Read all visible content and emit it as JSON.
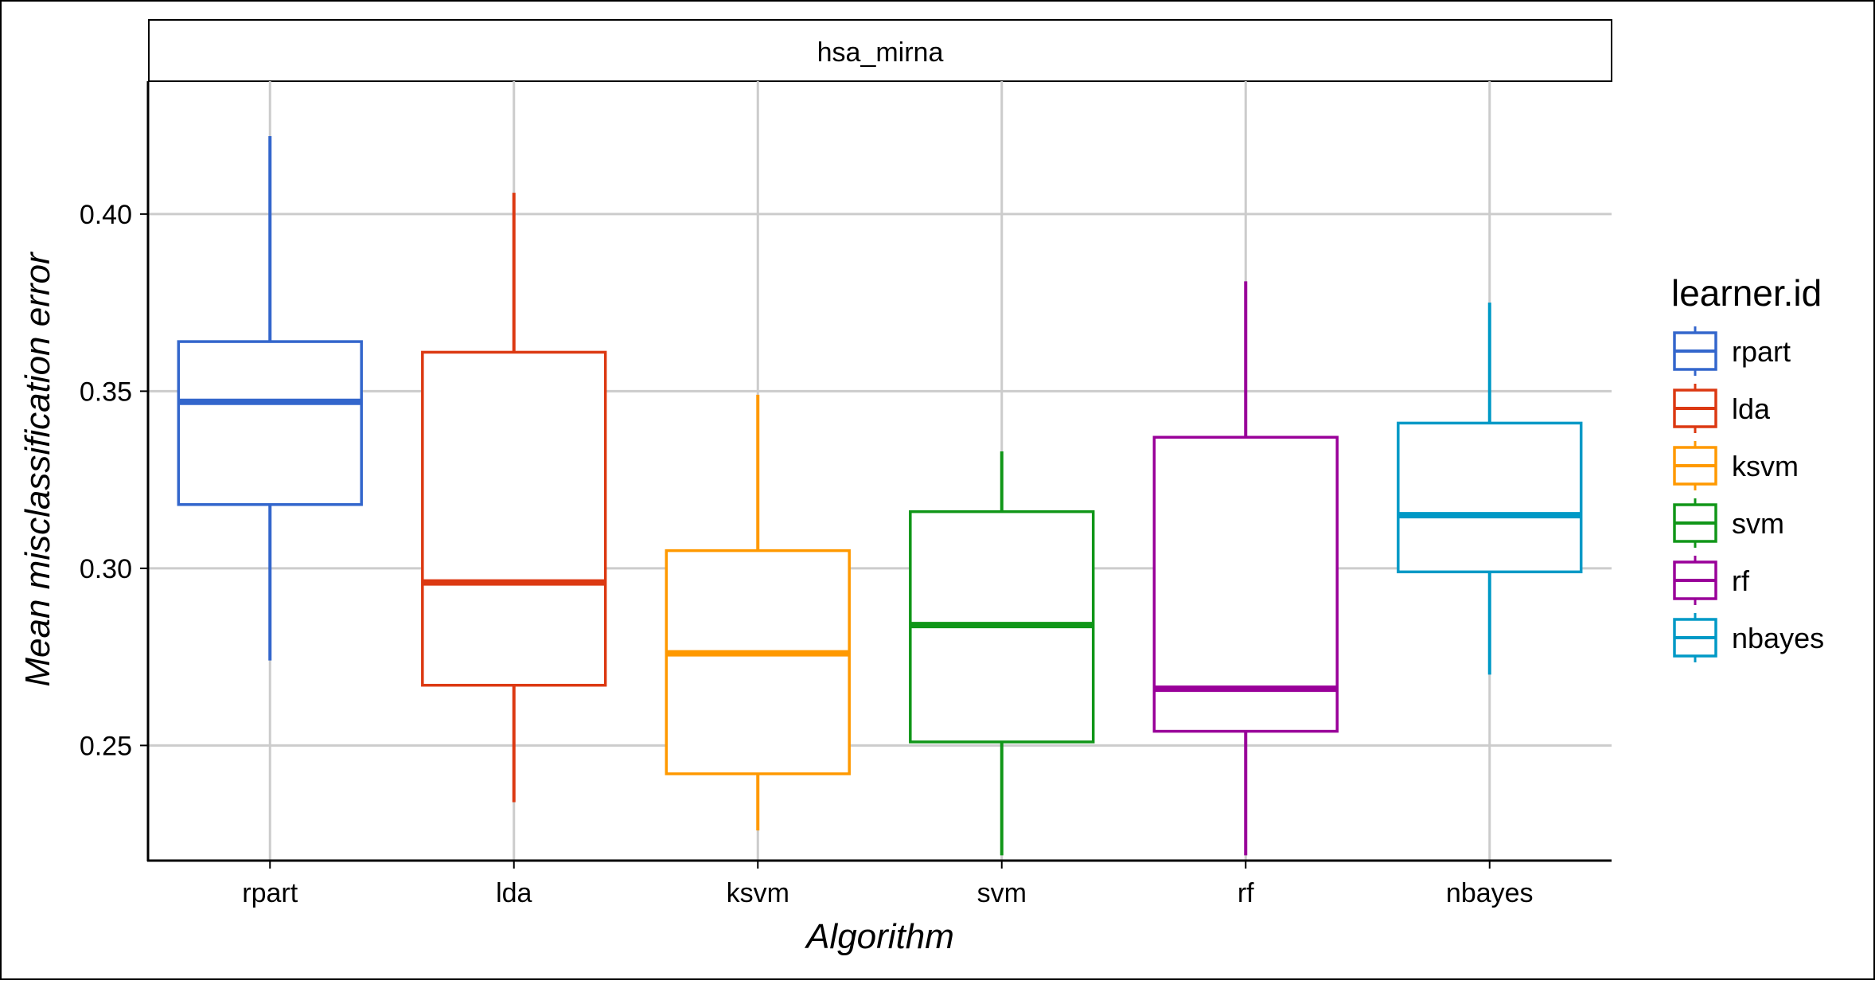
{
  "chart_data": {
    "type": "boxplot",
    "facet_label": "hsa_mirna",
    "xlabel": "Algorithm",
    "ylabel": "Mean misclassification error",
    "ylim": [
      0.2175,
      0.4375
    ],
    "yticks": [
      0.25,
      0.3,
      0.35,
      0.4
    ],
    "ytick_labels": [
      "0.25",
      "0.30",
      "0.35",
      "0.40"
    ],
    "grid": true,
    "legend": {
      "title": "learner.id",
      "placement": "right"
    },
    "categories": [
      "rpart",
      "lda",
      "ksvm",
      "svm",
      "rf",
      "nbayes"
    ],
    "series": [
      {
        "name": "rpart",
        "color": "#3366CC",
        "min": 0.274,
        "q1": 0.318,
        "median": 0.347,
        "q3": 0.364,
        "max": 0.422
      },
      {
        "name": "lda",
        "color": "#DC3912",
        "min": 0.234,
        "q1": 0.267,
        "median": 0.296,
        "q3": 0.361,
        "max": 0.406
      },
      {
        "name": "ksvm",
        "color": "#FF9900",
        "min": 0.226,
        "q1": 0.242,
        "median": 0.276,
        "q3": 0.305,
        "max": 0.349
      },
      {
        "name": "svm",
        "color": "#109618",
        "min": 0.219,
        "q1": 0.251,
        "median": 0.284,
        "q3": 0.316,
        "max": 0.333
      },
      {
        "name": "rf",
        "color": "#990099",
        "min": 0.219,
        "q1": 0.254,
        "median": 0.266,
        "q3": 0.337,
        "max": 0.381
      },
      {
        "name": "nbayes",
        "color": "#0099C6",
        "min": 0.27,
        "q1": 0.299,
        "median": 0.315,
        "q3": 0.341,
        "max": 0.375
      }
    ]
  }
}
